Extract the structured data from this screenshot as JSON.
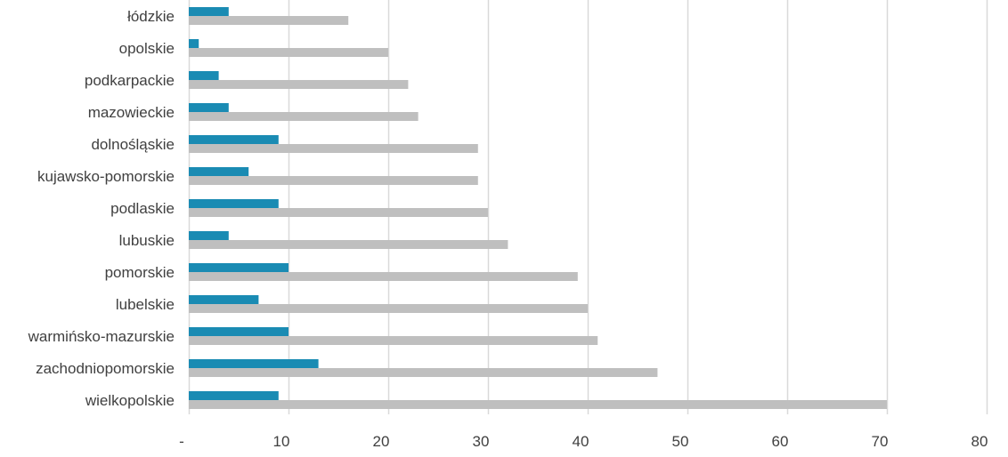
{
  "chart_data": {
    "type": "bar",
    "orientation": "horizontal",
    "categories": [
      "łódzkie",
      "opolskie",
      "podkarpackie",
      "mazowieckie",
      "dolnośląskie",
      "kujawsko-pomorskie",
      "podlaskie",
      "lubuskie",
      "pomorskie",
      "lubelskie",
      "warmińsko-mazurskie",
      "zachodniopomorskie",
      "wielkopolskie"
    ],
    "series": [
      {
        "color": "#1a8bb3",
        "values": [
          4,
          1,
          3,
          4,
          9,
          6,
          9,
          4,
          10,
          7,
          10,
          13,
          9
        ]
      },
      {
        "color": "#bfbfbf",
        "values": [
          16,
          20,
          22,
          23,
          29,
          29,
          30,
          32,
          39,
          40,
          41,
          47,
          70
        ]
      }
    ],
    "xlim": [
      0,
      80
    ],
    "x_ticks": [
      {
        "value": 0,
        "label": "-"
      },
      {
        "value": 10,
        "label": "10"
      },
      {
        "value": 20,
        "label": "20"
      },
      {
        "value": 30,
        "label": "30"
      },
      {
        "value": 40,
        "label": "40"
      },
      {
        "value": 50,
        "label": "50"
      },
      {
        "value": 60,
        "label": "60"
      },
      {
        "value": 70,
        "label": "70"
      },
      {
        "value": 80,
        "label": "80"
      }
    ],
    "grid": "vertical",
    "gridline_color": "#d9d9d9"
  }
}
